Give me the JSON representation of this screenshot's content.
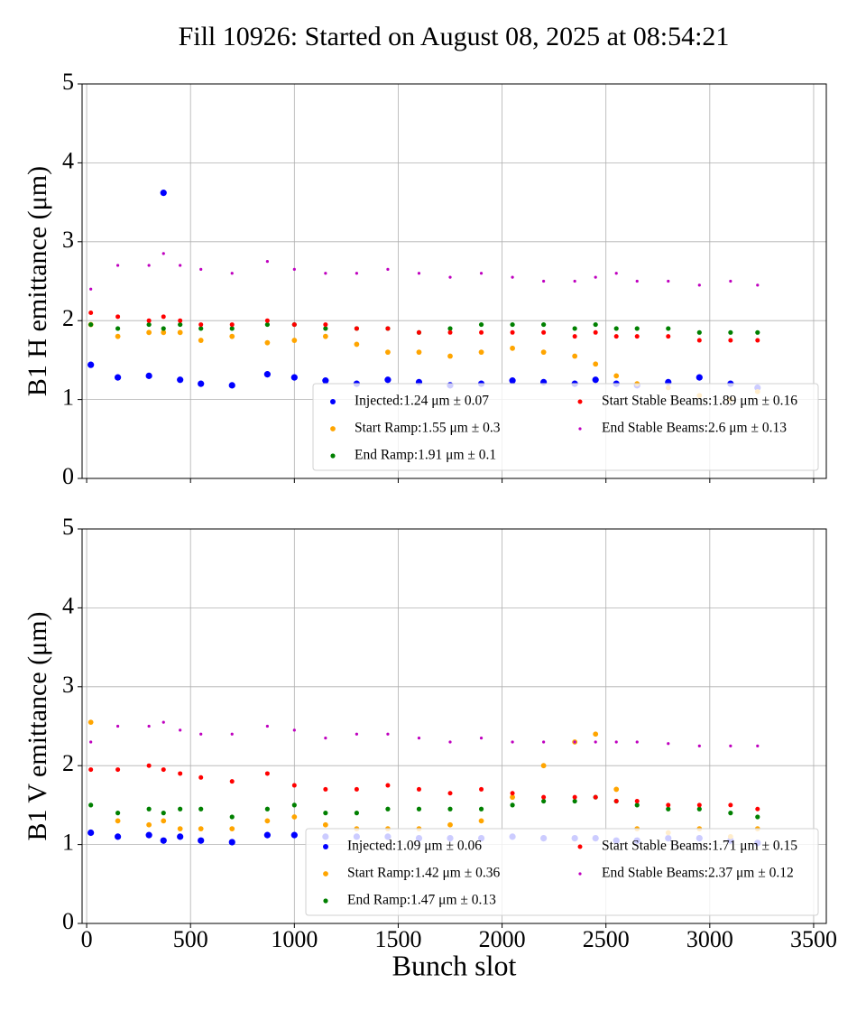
{
  "chart_data": [
    {
      "type": "scatter",
      "title": "Fill 10926: Started on August 08, 2025 at 08:54:21",
      "ylabel": "B1 H emittance (μm)",
      "x": [
        20,
        150,
        300,
        370,
        450,
        550,
        700,
        870,
        1000,
        1150,
        1300,
        1450,
        1600,
        1750,
        1900,
        2050,
        2200,
        2350,
        2450,
        2550,
        2650,
        2800,
        2950,
        3100,
        3230
      ],
      "series": [
        {
          "name": "Injected:1.24 μm ± 0.07",
          "color": "#0000ff",
          "values": [
            1.44,
            1.28,
            1.3,
            3.62,
            1.25,
            1.2,
            1.18,
            1.32,
            1.28,
            1.24,
            1.2,
            1.25,
            1.22,
            1.18,
            1.2,
            1.24,
            1.22,
            1.2,
            1.25,
            1.2,
            1.18,
            1.22,
            1.28,
            1.2,
            1.15
          ]
        },
        {
          "name": "Start Ramp:1.55 μm ± 0.3",
          "color": "#ffa500",
          "values": [
            1.95,
            1.8,
            1.85,
            1.85,
            1.85,
            1.75,
            1.8,
            1.72,
            1.75,
            1.8,
            1.7,
            1.6,
            1.6,
            1.55,
            1.6,
            1.65,
            1.6,
            1.55,
            1.45,
            1.3,
            1.2,
            1.15,
            1.05,
            1.0,
            1.1
          ]
        },
        {
          "name": "End Ramp:1.91 μm ± 0.1",
          "color": "#008000",
          "values": [
            1.95,
            1.9,
            1.95,
            1.9,
            1.95,
            1.9,
            1.9,
            1.95,
            1.95,
            1.9,
            1.9,
            1.9,
            1.85,
            1.9,
            1.95,
            1.95,
            1.95,
            1.9,
            1.95,
            1.9,
            1.9,
            1.9,
            1.85,
            1.85,
            1.85
          ]
        },
        {
          "name": "Start Stable Beams:1.89 μm ± 0.16",
          "color": "#ff0000",
          "values": [
            2.1,
            2.05,
            2.0,
            2.05,
            2.0,
            1.95,
            1.95,
            2.0,
            1.95,
            1.95,
            1.9,
            1.9,
            1.85,
            1.85,
            1.85,
            1.85,
            1.85,
            1.8,
            1.85,
            1.8,
            1.8,
            1.8,
            1.75,
            1.75,
            1.75
          ]
        },
        {
          "name": "End Stable Beams:2.6 μm ± 0.13",
          "color": "#bf00bf",
          "values": [
            2.4,
            2.7,
            2.7,
            2.85,
            2.7,
            2.65,
            2.6,
            2.75,
            2.65,
            2.6,
            2.6,
            2.65,
            2.6,
            2.55,
            2.6,
            2.55,
            2.5,
            2.5,
            2.55,
            2.6,
            2.5,
            2.5,
            2.45,
            2.5,
            2.45
          ]
        }
      ],
      "xlim": [
        -22,
        3561
      ],
      "xticks": [
        0,
        500,
        1000,
        1500,
        2000,
        2500,
        3000,
        3500
      ],
      "xtick_labels": false,
      "ylim": [
        0,
        5
      ],
      "yticks": [
        0,
        1,
        2,
        3,
        4,
        5
      ],
      "grid": true,
      "legend": "lower right",
      "legend_columns": 2
    },
    {
      "type": "scatter",
      "ylabel": "B1 V emittance (μm)",
      "xlabel": "Bunch slot",
      "x": [
        20,
        150,
        300,
        370,
        450,
        550,
        700,
        870,
        1000,
        1150,
        1300,
        1450,
        1600,
        1750,
        1900,
        2050,
        2200,
        2350,
        2450,
        2550,
        2650,
        2800,
        2950,
        3100,
        3230
      ],
      "series": [
        {
          "name": "Injected:1.09 μm ± 0.06",
          "color": "#0000ff",
          "values": [
            1.15,
            1.1,
            1.12,
            1.05,
            1.1,
            1.05,
            1.03,
            1.12,
            1.12,
            1.1,
            1.1,
            1.1,
            1.08,
            1.08,
            1.08,
            1.1,
            1.08,
            1.08,
            1.08,
            1.05,
            1.05,
            1.08,
            1.08,
            1.05,
            1.02
          ]
        },
        {
          "name": "Start Ramp:1.42 μm ± 0.36",
          "color": "#ffa500",
          "values": [
            2.55,
            1.3,
            1.25,
            1.3,
            1.2,
            1.2,
            1.2,
            1.3,
            1.35,
            1.25,
            1.2,
            1.2,
            1.2,
            1.25,
            1.3,
            1.6,
            2.0,
            2.3,
            2.4,
            1.7,
            1.2,
            1.15,
            1.2,
            1.1,
            1.2
          ]
        },
        {
          "name": "End Ramp:1.47 μm ± 0.13",
          "color": "#008000",
          "values": [
            1.5,
            1.4,
            1.45,
            1.4,
            1.45,
            1.45,
            1.35,
            1.45,
            1.5,
            1.4,
            1.4,
            1.45,
            1.45,
            1.45,
            1.45,
            1.5,
            1.55,
            1.55,
            1.6,
            1.55,
            1.5,
            1.45,
            1.45,
            1.4,
            1.35
          ]
        },
        {
          "name": "Start Stable Beams:1.71 μm ± 0.15",
          "color": "#ff0000",
          "values": [
            1.95,
            1.95,
            2.0,
            1.95,
            1.9,
            1.85,
            1.8,
            1.9,
            1.75,
            1.7,
            1.7,
            1.75,
            1.7,
            1.65,
            1.7,
            1.65,
            1.6,
            1.6,
            1.6,
            1.55,
            1.55,
            1.5,
            1.5,
            1.5,
            1.45
          ]
        },
        {
          "name": "End Stable Beams:2.37 μm ± 0.12",
          "color": "#bf00bf",
          "values": [
            2.3,
            2.5,
            2.5,
            2.55,
            2.45,
            2.4,
            2.4,
            2.5,
            2.45,
            2.35,
            2.4,
            2.4,
            2.35,
            2.3,
            2.35,
            2.3,
            2.3,
            2.3,
            2.3,
            2.3,
            2.3,
            2.28,
            2.25,
            2.25,
            2.25
          ]
        }
      ],
      "xlim": [
        -22,
        3561
      ],
      "xticks": [
        0,
        500,
        1000,
        1500,
        2000,
        2500,
        3000,
        3500
      ],
      "xtick_labels": true,
      "ylim": [
        0,
        5
      ],
      "yticks": [
        0,
        1,
        2,
        3,
        4,
        5
      ],
      "grid": true,
      "legend": "lower right",
      "legend_columns": 2
    }
  ]
}
